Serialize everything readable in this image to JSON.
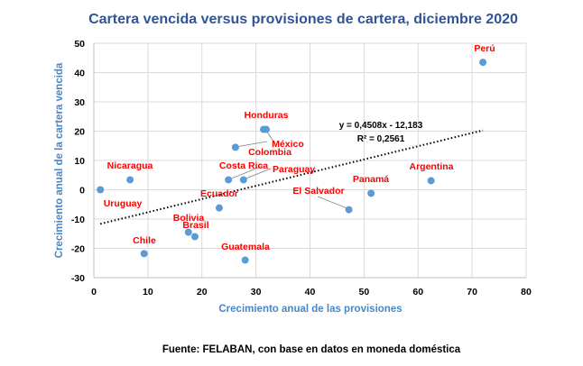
{
  "chart_data": {
    "type": "scatter",
    "title": "Cartera vencida versus provisiones de cartera, diciembre 2020",
    "xlabel": "Crecimiento anual de las provisiones",
    "ylabel": "Crecimiento anual de la cartera vencida",
    "xlim": [
      0,
      80
    ],
    "ylim": [
      -30,
      50
    ],
    "xticks": [
      0,
      10,
      20,
      30,
      40,
      50,
      60,
      70,
      80
    ],
    "yticks": [
      -30,
      -20,
      -10,
      0,
      10,
      20,
      30,
      40,
      50
    ],
    "grid": true,
    "marker_color": "#5b9bd5",
    "label_color": "#ff0000",
    "points": [
      {
        "name": "Uruguay",
        "x": 1.2,
        "y": 0.0
      },
      {
        "name": "Nicaragua",
        "x": 6.7,
        "y": 3.4
      },
      {
        "name": "Chile",
        "x": 9.3,
        "y": -21.8
      },
      {
        "name": "Bolivia",
        "x": 17.5,
        "y": -14.5
      },
      {
        "name": "Brasil",
        "x": 18.7,
        "y": -16.0
      },
      {
        "name": "Ecuador",
        "x": 23.2,
        "y": -6.2
      },
      {
        "name": "Costa Rica",
        "x": 24.9,
        "y": 3.4
      },
      {
        "name": "Colombia",
        "x": 26.2,
        "y": 14.5
      },
      {
        "name": "Paraguay",
        "x": 27.7,
        "y": 3.4
      },
      {
        "name": "Guatemala",
        "x": 28.0,
        "y": -24.0
      },
      {
        "name": "Honduras",
        "x": 31.4,
        "y": 20.6
      },
      {
        "name": "México",
        "x": 31.9,
        "y": 20.6
      },
      {
        "name": "El Salvador",
        "x": 47.2,
        "y": -6.8
      },
      {
        "name": "Panamá",
        "x": 51.3,
        "y": -1.2
      },
      {
        "name": "Argentina",
        "x": 62.4,
        "y": 3.1
      },
      {
        "name": "Perú",
        "x": 72.0,
        "y": 43.5
      }
    ],
    "trendline": {
      "slope": 0.4508,
      "intercept": -12.183,
      "x_range": [
        1.2,
        72.0
      ],
      "equation": "y = 0,4508x - 12,183",
      "r2": "R² = 0,2561"
    },
    "source": "Fuente: FELABAN, con base en datos en moneda doméstica"
  }
}
